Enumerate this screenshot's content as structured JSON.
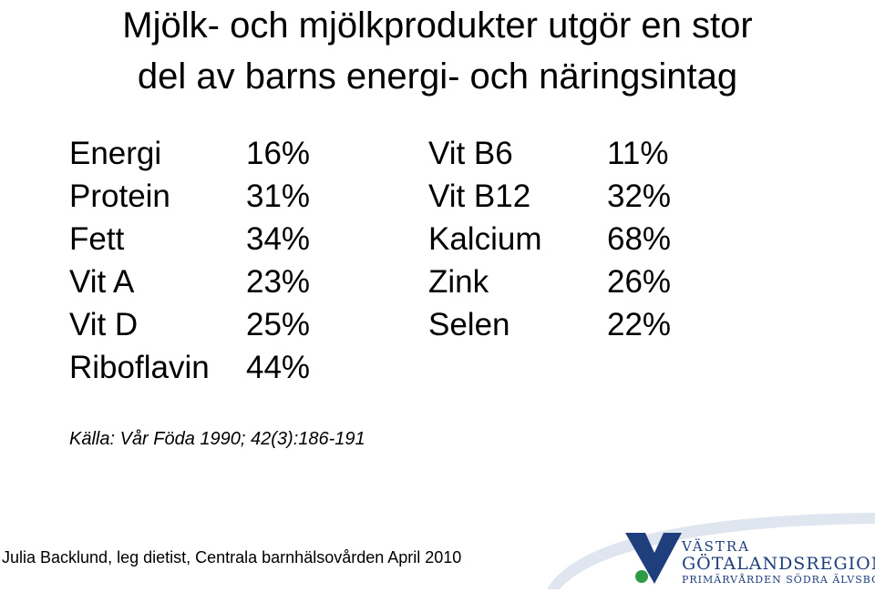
{
  "title": {
    "line1": "Mjölk- och mjölkprodukter utgör en stor",
    "line2": "del av barns energi- och näringsintag"
  },
  "nutrients_left": [
    {
      "label": "Energi",
      "value": "16%"
    },
    {
      "label": "Protein",
      "value": "31%"
    },
    {
      "label": "Fett",
      "value": "34%"
    },
    {
      "label": "Vit A",
      "value": "23%"
    },
    {
      "label": "Vit D",
      "value": "25%"
    },
    {
      "label": "Riboflavin",
      "value": "44%"
    }
  ],
  "nutrients_right": [
    {
      "label": "Vit B6",
      "value": "11%"
    },
    {
      "label": "Vit B12",
      "value": "32%"
    },
    {
      "label": "Kalcium",
      "value": "68%"
    },
    {
      "label": "Zink",
      "value": "26%"
    },
    {
      "label": "Selen",
      "value": "22%"
    }
  ],
  "source": "Källa: Vår Föda 1990; 42(3):186-191",
  "footer": "Julia Backlund, leg dietist, Centrala barnhälsovården April 2010",
  "logo": {
    "line1": "VÄSTRA",
    "line2": "GÖTALANDSREGIONEN",
    "line3": "PRIMÄRVÅRDEN SÖDRA ÄLVSBORG",
    "colors": {
      "blue": "#1f3e7c",
      "green": "#2e9b45",
      "swoosh": "#dfe6ef"
    }
  }
}
